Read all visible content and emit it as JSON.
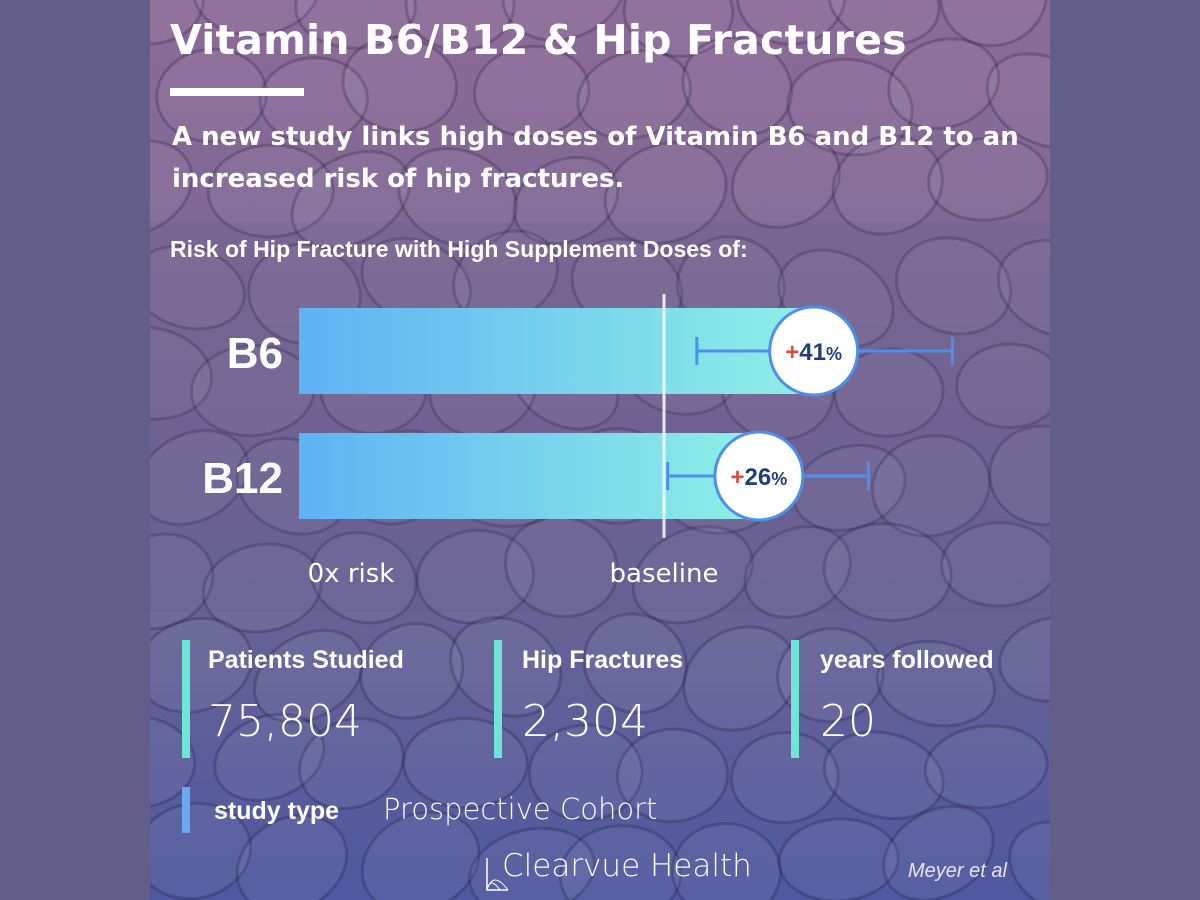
{
  "title": "Vitamin B6/B12 & Hip Fractures",
  "subtitle": "A new study links high doses of Vitamin B6 and B12 to an increased risk of hip fractures.",
  "chart_data": {
    "type": "bar",
    "title": "Risk of Hip Fracture with High Supplement Doses of:",
    "categories": [
      "B6",
      "B12"
    ],
    "values": [
      41,
      26
    ],
    "value_labels": [
      "+41%",
      "+26%"
    ],
    "error_bars": [
      {
        "low": 9,
        "high": 79
      },
      {
        "low": 1,
        "high": 56
      }
    ],
    "xlabel": "",
    "ylabel": "",
    "x_axis_labels": [
      "0x risk",
      "baseline"
    ],
    "grid": false
  },
  "stats": [
    {
      "label": "Patients Studied",
      "value": "75,804"
    },
    {
      "label": "Hip Fractures",
      "value": "2,304"
    },
    {
      "label": "years followed",
      "value": "20"
    }
  ],
  "study_type": {
    "label": "study type",
    "value": "Prospective Cohort"
  },
  "brand": "Clearvue Health",
  "citation": "Meyer et al",
  "colors": {
    "background": "#635d89",
    "bar_left": "#5fb2f4",
    "bar_right": "#8ef0e6",
    "error_bar": "#4f8fe8",
    "stat_accent": "#6ee6d6",
    "study_accent": "#6aa8f0",
    "plus_sign": "#e04a3a",
    "value_text": "#1f3f7a"
  }
}
